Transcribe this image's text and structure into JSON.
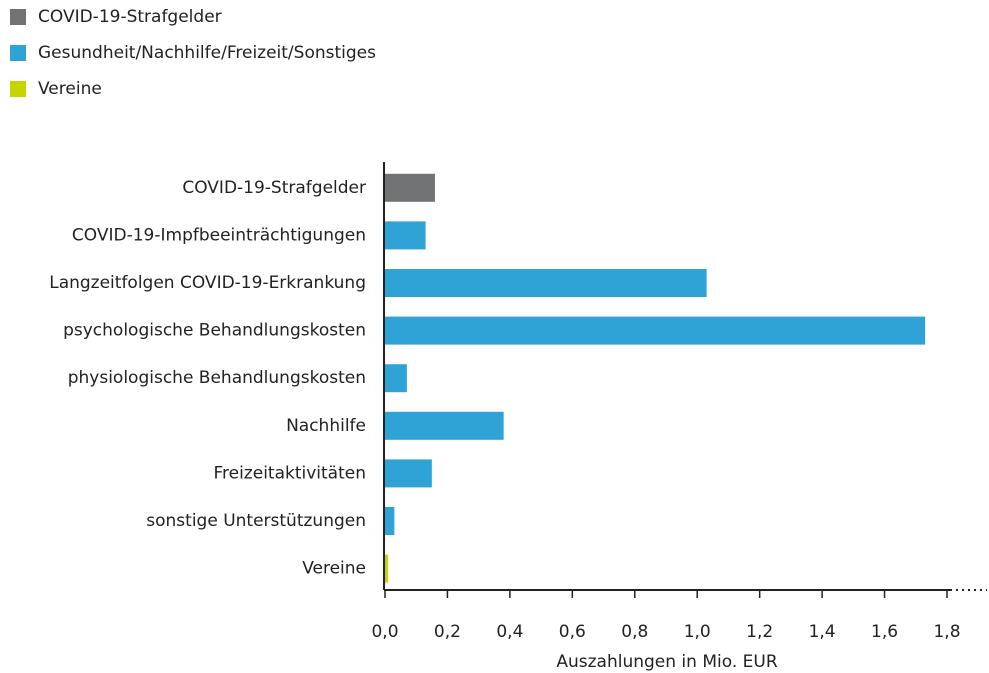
{
  "chart_data": {
    "type": "bar",
    "orientation": "horizontal",
    "legend": [
      {
        "name": "COVID-19-Strafgelder",
        "color": "#707274"
      },
      {
        "name": "Gesundheit/Nachhilfe/Freizeit/Sonstiges",
        "color": "#2fa3d6"
      },
      {
        "name": "Vereine",
        "color": "#c8d400"
      }
    ],
    "categories": [
      "COVID-19-Strafgelder",
      "COVID-19-Impfbeeinträchtigungen",
      "Langzeitfolgen COVID-19-Erkrankung",
      "psychologische Behandlungskosten",
      "physiologische Behandlungskosten",
      "Nachhilfe",
      "Freizeitaktivitäten",
      "sonstige Unterstützungen",
      "Vereine"
    ],
    "values": [
      0.16,
      0.13,
      1.03,
      1.73,
      0.07,
      0.38,
      0.15,
      0.03,
      0.01
    ],
    "bar_colors": [
      "#707274",
      "#2fa3d6",
      "#2fa3d6",
      "#2fa3d6",
      "#2fa3d6",
      "#2fa3d6",
      "#2fa3d6",
      "#2fa3d6",
      "#c8d400"
    ],
    "xlabel": "Auszahlungen in Mio. EUR",
    "xlim": [
      0,
      1.8
    ],
    "xticks": [
      {
        "value": 0,
        "label": "0,0"
      },
      {
        "value": 0.2,
        "label": "0,2"
      },
      {
        "value": 0.4,
        "label": "0,4"
      },
      {
        "value": 0.6,
        "label": "0,6"
      },
      {
        "value": 0.8,
        "label": "0,8"
      },
      {
        "value": 1.0,
        "label": "1,0"
      },
      {
        "value": 1.2,
        "label": "1,2"
      },
      {
        "value": 1.4,
        "label": "1,4"
      },
      {
        "value": 1.6,
        "label": "1,6"
      },
      {
        "value": 1.8,
        "label": "1,8"
      }
    ],
    "grid": false
  }
}
